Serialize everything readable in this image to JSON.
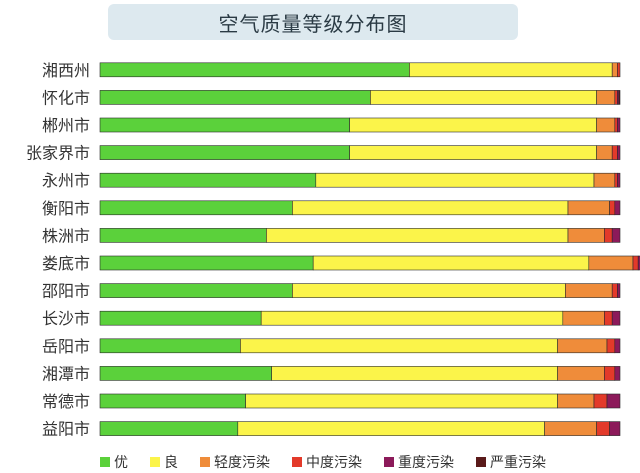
{
  "chart_data": {
    "type": "bar",
    "orientation": "horizontal",
    "stacked": true,
    "percent_stacked": true,
    "title": "空气质量等级分布图",
    "categories": [
      "湘西州",
      "怀化市",
      "郴州市",
      "张家界市",
      "永州市",
      "衡阳市",
      "株洲市",
      "娄底市",
      "邵阳市",
      "长沙市",
      "岳阳市",
      "湘潭市",
      "常德市",
      "益阳市"
    ],
    "series": [
      {
        "name": "优",
        "color": "#5bd13b",
        "values": [
          59.5,
          52.0,
          48.0,
          48.0,
          41.5,
          37.0,
          32.0,
          41.0,
          37.0,
          31.0,
          27.0,
          33.0,
          28.0,
          26.5
        ]
      },
      {
        "name": "良",
        "color": "#fbf44a",
        "values": [
          39.0,
          43.5,
          47.5,
          47.5,
          53.5,
          53.0,
          58.0,
          53.0,
          52.5,
          58.0,
          61.0,
          55.0,
          60.0,
          59.0
        ]
      },
      {
        "name": "轻度污染",
        "color": "#ef8c3a",
        "values": [
          1.0,
          3.5,
          3.5,
          3.0,
          4.0,
          8.0,
          7.0,
          8.5,
          9.0,
          8.0,
          9.5,
          9.0,
          7.0,
          10.0
        ]
      },
      {
        "name": "中度污染",
        "color": "#e33a2a",
        "values": [
          0.5,
          0.5,
          0.5,
          1.0,
          0.5,
          1.0,
          1.5,
          1.0,
          1.0,
          1.5,
          1.5,
          2.0,
          2.5,
          2.5
        ]
      },
      {
        "name": "重度污染",
        "color": "#8c1a5a",
        "values": [
          0.0,
          0.3,
          0.5,
          0.5,
          0.5,
          1.0,
          1.5,
          0.5,
          0.5,
          1.5,
          1.0,
          1.0,
          2.5,
          2.0
        ]
      },
      {
        "name": "严重污染",
        "color": "#5a1a1a",
        "values": [
          0.0,
          0.2,
          0.0,
          0.0,
          0.0,
          0.0,
          0.0,
          0.0,
          0.0,
          0.0,
          0.0,
          0.0,
          0.0,
          0.0
        ]
      }
    ],
    "xlim": [
      0,
      100
    ],
    "grid": false,
    "legend_position": "bottom"
  }
}
